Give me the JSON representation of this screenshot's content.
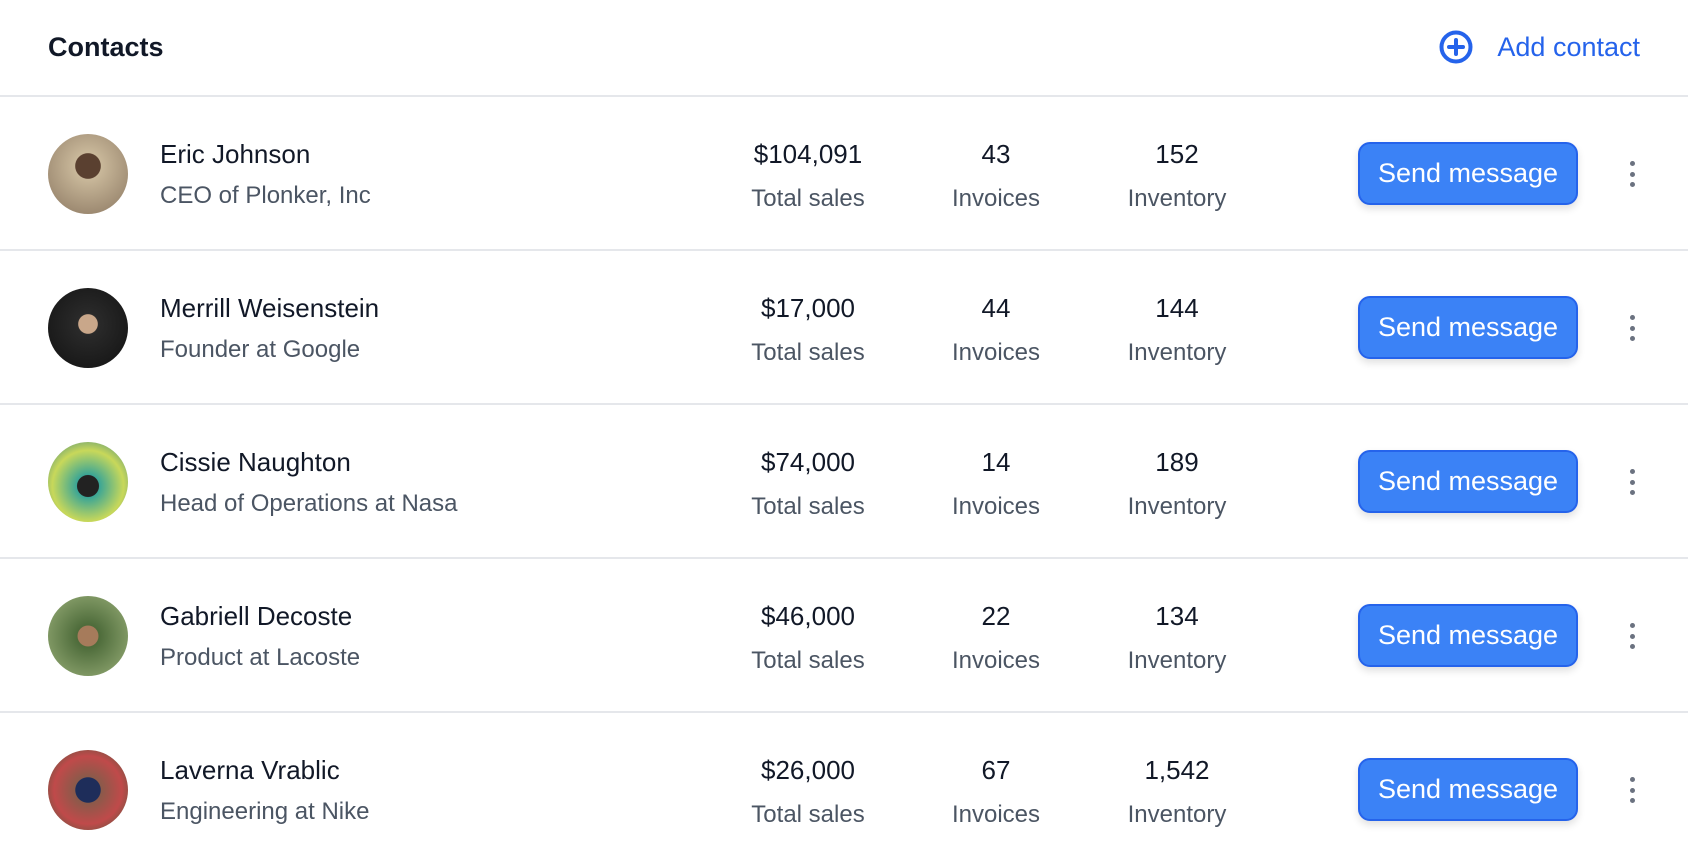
{
  "header": {
    "title": "Contacts",
    "add_label": "Add contact",
    "add_icon": "plus-circle-icon",
    "accent": "#2563eb"
  },
  "labels": {
    "sales": "Total sales",
    "invoices": "Invoices",
    "inventory": "Inventory",
    "send": "Send message"
  },
  "contacts": [
    {
      "name": "Eric Johnson",
      "role": "CEO of Plonker, Inc",
      "sales": "$104,091",
      "invoices": "43",
      "inventory": "152"
    },
    {
      "name": "Merrill Weisenstein",
      "role": "Founder at Google",
      "sales": "$17,000",
      "invoices": "44",
      "inventory": "144"
    },
    {
      "name": "Cissie Naughton",
      "role": "Head of Operations at Nasa",
      "sales": "$74,000",
      "invoices": "14",
      "inventory": "189"
    },
    {
      "name": "Gabriell Decoste",
      "role": "Product at Lacoste",
      "sales": "$46,000",
      "invoices": "22",
      "inventory": "134"
    },
    {
      "name": "Laverna Vrablic",
      "role": "Engineering at Nike",
      "sales": "$26,000",
      "invoices": "67",
      "inventory": "1,542"
    }
  ]
}
